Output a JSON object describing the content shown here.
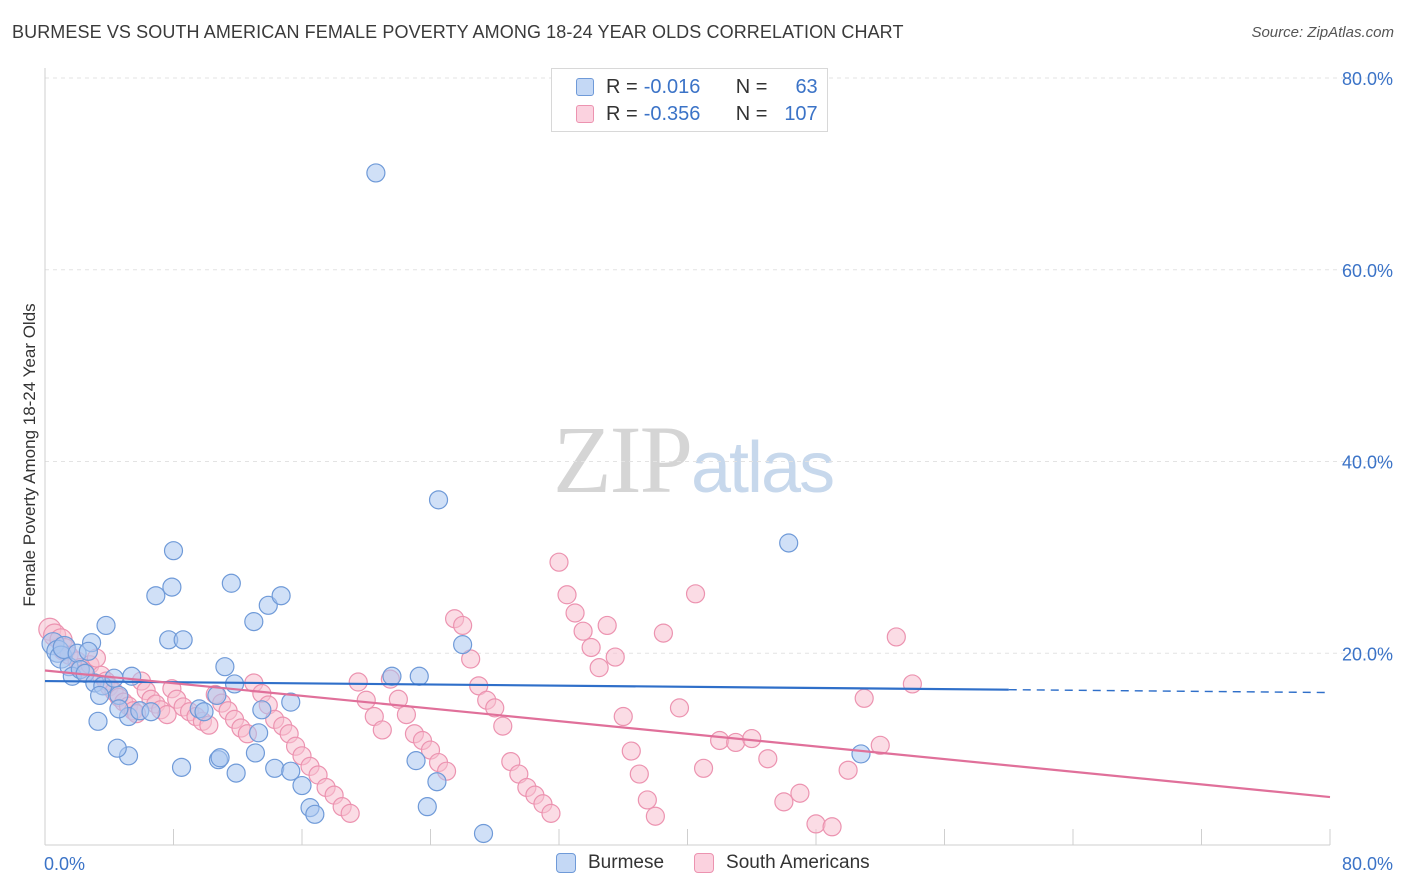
{
  "header": {
    "title": "BURMESE VS SOUTH AMERICAN FEMALE POVERTY AMONG 18-24 YEAR OLDS CORRELATION CHART",
    "source": "Source: ZipAtlas.com"
  },
  "watermark": {
    "zip": "ZIP",
    "atlas": "atlas"
  },
  "legend_top": {
    "rows": [
      {
        "r_label": "R =",
        "r_value": "-0.016",
        "n_label": "N =",
        "n_value": "63"
      },
      {
        "r_label": "R =",
        "r_value": "-0.356",
        "n_label": "N =",
        "n_value": "107"
      }
    ]
  },
  "legend_bottom": {
    "items": [
      "Burmese",
      "South Americans"
    ]
  },
  "colors": {
    "burmese_fill": "#a9c6f0",
    "burmese_stroke": "#6f9ad8",
    "burmese_line": "#2f6fc9",
    "south_fill": "#f8bfd0",
    "south_stroke": "#ec93b0",
    "south_line": "#e0709a",
    "tick_label": "#3b73c7",
    "grid": "#e3e3e3"
  },
  "chart_data": {
    "type": "scatter",
    "title": "BURMESE VS SOUTH AMERICAN FEMALE POVERTY AMONG 18-24 YEAR OLDS CORRELATION CHART",
    "xlabel": "",
    "ylabel": "Female Poverty Among 18-24 Year Olds",
    "xlim": [
      0,
      80
    ],
    "ylim": [
      0,
      80
    ],
    "x_tick_labels": [
      "0.0%",
      "80.0%"
    ],
    "y_ticks": [
      20,
      40,
      60,
      80
    ],
    "y_tick_labels": [
      "20.0%",
      "40.0%",
      "60.0%",
      "80.0%"
    ],
    "grid": true,
    "legend_position": "top-center",
    "series": [
      {
        "name": "Burmese",
        "r": -0.016,
        "n": 63,
        "trend": {
          "x0": 0,
          "y0": 17.1,
          "x1": 60,
          "y1": 16.2,
          "dashed_to_x": 80,
          "dashed_y1": 15.9
        },
        "points": [
          [
            0.5,
            21.0
          ],
          [
            0.8,
            20.2
          ],
          [
            1.0,
            19.6
          ],
          [
            1.2,
            20.6
          ],
          [
            1.5,
            18.6
          ],
          [
            1.7,
            17.6
          ],
          [
            2.0,
            20.0
          ],
          [
            2.2,
            18.3
          ],
          [
            2.5,
            17.9
          ],
          [
            2.9,
            21.1
          ],
          [
            3.1,
            16.9
          ],
          [
            3.6,
            16.6
          ],
          [
            3.8,
            22.9
          ],
          [
            3.4,
            15.6
          ],
          [
            4.6,
            15.6
          ],
          [
            4.3,
            17.4
          ],
          [
            5.4,
            17.6
          ],
          [
            5.2,
            13.4
          ],
          [
            5.9,
            14.0
          ],
          [
            6.6,
            13.9
          ],
          [
            3.3,
            12.9
          ],
          [
            5.2,
            9.3
          ],
          [
            6.9,
            26.0
          ],
          [
            7.9,
            26.9
          ],
          [
            7.7,
            21.4
          ],
          [
            8.6,
            21.4
          ],
          [
            8.0,
            30.7
          ],
          [
            11.6,
            27.3
          ],
          [
            13.9,
            25.0
          ],
          [
            14.7,
            26.0
          ],
          [
            13.0,
            23.3
          ],
          [
            11.2,
            18.6
          ],
          [
            11.8,
            16.8
          ],
          [
            9.6,
            14.2
          ],
          [
            10.7,
            15.6
          ],
          [
            9.9,
            13.9
          ],
          [
            8.5,
            8.1
          ],
          [
            10.8,
            8.9
          ],
          [
            10.9,
            9.1
          ],
          [
            11.9,
            7.5
          ],
          [
            13.1,
            9.6
          ],
          [
            13.5,
            14.1
          ],
          [
            13.3,
            11.7
          ],
          [
            15.3,
            14.9
          ],
          [
            14.3,
            8.0
          ],
          [
            15.3,
            7.7
          ],
          [
            16.0,
            6.2
          ],
          [
            16.5,
            3.9
          ],
          [
            16.8,
            3.2
          ],
          [
            4.6,
            14.2
          ],
          [
            4.5,
            10.1
          ],
          [
            20.6,
            70.1
          ],
          [
            24.5,
            36.0
          ],
          [
            26.0,
            20.9
          ],
          [
            21.6,
            17.6
          ],
          [
            23.3,
            17.6
          ],
          [
            23.1,
            8.8
          ],
          [
            24.4,
            6.6
          ],
          [
            23.8,
            4.0
          ],
          [
            27.3,
            1.2
          ],
          [
            46.3,
            31.5
          ],
          [
            50.8,
            9.5
          ],
          [
            2.7,
            20.2
          ]
        ]
      },
      {
        "name": "South Americans",
        "r": -0.356,
        "n": 107,
        "trend": {
          "x0": 0,
          "y0": 18.2,
          "x1": 80,
          "y1": 5.0
        },
        "points": [
          [
            0.3,
            22.5
          ],
          [
            0.6,
            21.9
          ],
          [
            1.0,
            21.4
          ],
          [
            1.2,
            20.4
          ],
          [
            1.5,
            19.8
          ],
          [
            2.0,
            19.2
          ],
          [
            2.2,
            18.5
          ],
          [
            2.5,
            18.0
          ],
          [
            2.8,
            18.8
          ],
          [
            3.2,
            19.5
          ],
          [
            3.5,
            17.7
          ],
          [
            3.8,
            17.1
          ],
          [
            4.0,
            16.5
          ],
          [
            4.3,
            16.0
          ],
          [
            4.6,
            15.4
          ],
          [
            4.9,
            14.9
          ],
          [
            5.2,
            14.5
          ],
          [
            5.5,
            14.0
          ],
          [
            5.7,
            13.7
          ],
          [
            6.0,
            17.1
          ],
          [
            6.3,
            16.1
          ],
          [
            6.6,
            15.2
          ],
          [
            6.9,
            14.7
          ],
          [
            7.2,
            14.1
          ],
          [
            7.6,
            13.6
          ],
          [
            7.9,
            16.3
          ],
          [
            8.2,
            15.2
          ],
          [
            8.6,
            14.4
          ],
          [
            9.0,
            13.9
          ],
          [
            9.4,
            13.4
          ],
          [
            9.8,
            12.9
          ],
          [
            10.2,
            12.5
          ],
          [
            10.6,
            15.7
          ],
          [
            11.0,
            14.8
          ],
          [
            11.4,
            14.0
          ],
          [
            11.8,
            13.1
          ],
          [
            12.2,
            12.2
          ],
          [
            12.6,
            11.6
          ],
          [
            13.0,
            16.9
          ],
          [
            13.5,
            15.8
          ],
          [
            13.9,
            14.6
          ],
          [
            14.3,
            13.1
          ],
          [
            14.8,
            12.4
          ],
          [
            15.2,
            11.6
          ],
          [
            15.6,
            10.3
          ],
          [
            16.0,
            9.3
          ],
          [
            16.5,
            8.2
          ],
          [
            17.0,
            7.3
          ],
          [
            17.5,
            6.0
          ],
          [
            18.0,
            5.2
          ],
          [
            18.5,
            4.0
          ],
          [
            19.0,
            3.3
          ],
          [
            19.5,
            17.0
          ],
          [
            20.0,
            15.1
          ],
          [
            20.5,
            13.4
          ],
          [
            21.0,
            12.0
          ],
          [
            21.5,
            17.3
          ],
          [
            22.0,
            15.2
          ],
          [
            22.5,
            13.6
          ],
          [
            23.0,
            11.6
          ],
          [
            23.5,
            10.9
          ],
          [
            24.0,
            9.9
          ],
          [
            24.5,
            8.6
          ],
          [
            25.0,
            7.7
          ],
          [
            25.5,
            23.6
          ],
          [
            26.0,
            22.9
          ],
          [
            26.5,
            19.4
          ],
          [
            27.0,
            16.6
          ],
          [
            27.5,
            15.1
          ],
          [
            28.0,
            14.3
          ],
          [
            28.5,
            12.4
          ],
          [
            29.0,
            8.7
          ],
          [
            29.5,
            7.4
          ],
          [
            30.0,
            6.0
          ],
          [
            30.5,
            5.2
          ],
          [
            31.0,
            4.3
          ],
          [
            31.5,
            3.3
          ],
          [
            32.0,
            29.5
          ],
          [
            32.5,
            26.1
          ],
          [
            33.0,
            24.2
          ],
          [
            33.5,
            22.3
          ],
          [
            34.0,
            20.6
          ],
          [
            34.5,
            18.5
          ],
          [
            35.0,
            22.9
          ],
          [
            35.5,
            19.6
          ],
          [
            36.0,
            13.4
          ],
          [
            36.5,
            9.8
          ],
          [
            37.0,
            7.4
          ],
          [
            37.5,
            4.7
          ],
          [
            38.0,
            3.0
          ],
          [
            38.5,
            22.1
          ],
          [
            39.5,
            14.3
          ],
          [
            40.5,
            26.2
          ],
          [
            41.0,
            8.0
          ],
          [
            42.0,
            10.9
          ],
          [
            43.0,
            10.7
          ],
          [
            44.0,
            11.1
          ],
          [
            45.0,
            9.0
          ],
          [
            46.0,
            4.5
          ],
          [
            47.0,
            5.4
          ],
          [
            48.0,
            2.2
          ],
          [
            49.0,
            1.9
          ],
          [
            50.0,
            7.8
          ],
          [
            51.0,
            15.3
          ],
          [
            52.0,
            10.4
          ],
          [
            53.0,
            21.7
          ],
          [
            54.0,
            16.8
          ]
        ]
      }
    ]
  }
}
